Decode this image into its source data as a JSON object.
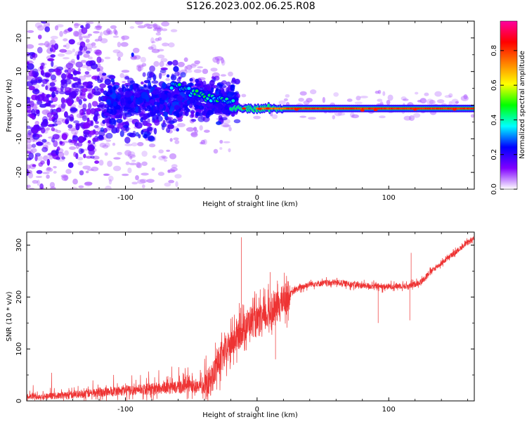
{
  "title": "S126.2023.002.06.25.R08",
  "chart_data": [
    {
      "type": "heatmap",
      "xlabel": "Height of straight line (km)",
      "ylabel": "Frequency (Hz)",
      "xlim": [
        -175,
        165
      ],
      "ylim": [
        -25,
        25
      ],
      "x_ticks": [
        -100,
        0,
        100
      ],
      "y_ticks": [
        20,
        10,
        0,
        -10,
        -20
      ],
      "colorbar": {
        "label": "Normalized spectral amplitude",
        "range": [
          0,
          0.97
        ],
        "ticks": [
          0.0,
          0.2,
          0.4,
          0.6,
          0.8
        ],
        "colormap": [
          "#ffffff",
          "#8000ff",
          "#0000ff",
          "#00ffff",
          "#00ff00",
          "#ffff00",
          "#ff8000",
          "#ff0000",
          "#ff00a0"
        ]
      },
      "features": {
        "central_line_frequency_hz": -1,
        "central_line_start_km": -20,
        "noise_region_end_km": -20
      }
    },
    {
      "type": "line",
      "xlabel": "Height of straight line (km)",
      "ylabel": "SNR (10 * v/v)",
      "xlim": [
        -175,
        165
      ],
      "ylim": [
        0,
        325
      ],
      "x_ticks": [
        -100,
        0,
        100
      ],
      "y_ticks": [
        0,
        100,
        200,
        300
      ],
      "color": "#ee3333",
      "series": [
        {
          "x": [
            -175,
            -150,
            -130,
            -110,
            -90,
            -70,
            -50,
            -40,
            -35,
            -30,
            -25,
            -20,
            -15,
            -10,
            -5,
            0,
            5,
            10,
            15,
            20,
            25,
            30,
            40,
            60,
            80,
            95,
            100,
            110,
            115,
            120,
            125,
            130,
            140,
            150,
            160,
            165
          ],
          "y": [
            8,
            10,
            14,
            18,
            22,
            25,
            28,
            25,
            40,
            70,
            90,
            110,
            125,
            140,
            155,
            150,
            160,
            170,
            180,
            195,
            205,
            215,
            225,
            228,
            222,
            220,
            220,
            222,
            220,
            225,
            230,
            245,
            265,
            285,
            305,
            312
          ]
        }
      ],
      "spikes": [
        {
          "x": -12,
          "y": 315
        },
        {
          "x": 10,
          "y": 248
        },
        {
          "x": 14,
          "y": 80
        },
        {
          "x": 92,
          "y": 150
        },
        {
          "x": 116,
          "y": 155
        },
        {
          "x": 117,
          "y": 285
        }
      ]
    }
  ]
}
